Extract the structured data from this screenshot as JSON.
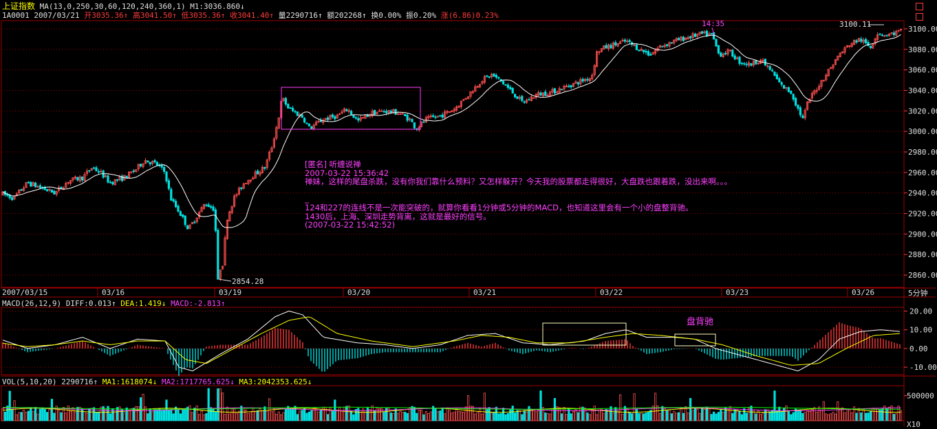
{
  "header": {
    "title": "上证指数",
    "ma_params": "MA(13,0,250,30,60,120,240,360,1)",
    "m1": "M1:3036.860↓",
    "code": "1A0001",
    "date": "2007/03/21",
    "open": "开3035.36↑",
    "high": "高3041.50↑",
    "low": "低3035.36↑",
    "close": "收3041.40↑",
    "volume": "量2290716↑",
    "amount": "额202268↑",
    "turnover": "换0.00%",
    "amplitude": "振0.20%",
    "change": "涨(6.86)0.23%"
  },
  "macd_header": {
    "name": "MACD(26,12,9)",
    "diff": "DIFF:0.013↑",
    "dea": "DEA:1.419↓",
    "macd": "MACD:-2.813↑"
  },
  "vol_header": {
    "name": "VOL(5,10,20)",
    "vol": "2290716↑",
    "ma1": "MA1:1618074↓",
    "ma2": "MA2:1717765.625↓",
    "ma3": "MA3:2042353.625↓"
  },
  "annotations": {
    "low_label": "2854.28",
    "peak_label": "14:35",
    "high_label": "3100.11",
    "macd_label": "盘背驰",
    "period": "5分钟",
    "vol_unit": "X10"
  },
  "note": {
    "l1": "[匿名] 听缠说禅",
    "l2": "2007-03-22 15:36:42",
    "l3": "禅妹，这样的尾盘杀跌，没有你我们靠什么预料？又怎样躲开？今天我的股票都走得很好，大盘跌也跟着跌，没出来啊。。。",
    "l4": "",
    "l5": "_",
    "l6": "124和227的连线不是一次能突破的，就算你看看1分钟或5分钟的MACD，也知道这里会有一个小的盘整背驰。",
    "l7": "1430后，上海、深圳走势背离，这就是最好的信号。",
    "l8": "(2007-03-22 15:42:52)"
  },
  "chart_data": {
    "type": "candlestick",
    "x_tick_labels": [
      "2007/03/15",
      "03/16",
      "03/19",
      "03/20",
      "03/21",
      "03/22",
      "03/23",
      "03/26"
    ],
    "y_ticks": [
      2860,
      2880,
      2900,
      2920,
      2940,
      2960,
      2980,
      3000,
      3020,
      3040,
      3060,
      3080,
      3100
    ],
    "ylim": [
      2848,
      3108
    ],
    "anchors": [
      [
        0,
        2940
      ],
      [
        20,
        2935
      ],
      [
        40,
        2950
      ],
      [
        60,
        2945
      ],
      [
        80,
        2940
      ],
      [
        100,
        2952
      ],
      [
        120,
        2955
      ],
      [
        134,
        2965
      ],
      [
        146,
        2960
      ],
      [
        160,
        2950
      ],
      [
        180,
        2955
      ],
      [
        196,
        2962
      ],
      [
        210,
        2972
      ],
      [
        228,
        2968
      ],
      [
        240,
        2960
      ],
      [
        248,
        2935
      ],
      [
        262,
        2920
      ],
      [
        274,
        2905
      ],
      [
        284,
        2915
      ],
      [
        298,
        2930
      ],
      [
        310,
        2925
      ],
      [
        318,
        2875
      ],
      [
        322,
        2860
      ],
      [
        330,
        2915
      ],
      [
        340,
        2935
      ],
      [
        355,
        2950
      ],
      [
        370,
        2958
      ],
      [
        385,
        2965
      ],
      [
        395,
        2985
      ],
      [
        404,
        3010
      ],
      [
        410,
        3033
      ],
      [
        420,
        3022
      ],
      [
        430,
        3018
      ],
      [
        440,
        3014
      ],
      [
        450,
        3003
      ],
      [
        470,
        3012
      ],
      [
        490,
        3015
      ],
      [
        505,
        3022
      ],
      [
        520,
        3010
      ],
      [
        540,
        3018
      ],
      [
        560,
        3020
      ],
      [
        580,
        3018
      ],
      [
        595,
        3012
      ],
      [
        605,
        3003
      ],
      [
        620,
        3012
      ],
      [
        640,
        3015
      ],
      [
        660,
        3022
      ],
      [
        680,
        3035
      ],
      [
        700,
        3050
      ],
      [
        715,
        3055
      ],
      [
        730,
        3048
      ],
      [
        745,
        3038
      ],
      [
        760,
        3028
      ],
      [
        780,
        3036
      ],
      [
        800,
        3038
      ],
      [
        820,
        3043
      ],
      [
        840,
        3048
      ],
      [
        860,
        3053
      ],
      [
        868,
        3078
      ],
      [
        880,
        3082
      ],
      [
        895,
        3085
      ],
      [
        910,
        3088
      ],
      [
        930,
        3080
      ],
      [
        945,
        3075
      ],
      [
        960,
        3083
      ],
      [
        980,
        3088
      ],
      [
        1000,
        3092
      ],
      [
        1020,
        3095
      ],
      [
        1035,
        3094
      ],
      [
        1045,
        3075
      ],
      [
        1060,
        3078
      ],
      [
        1075,
        3068
      ],
      [
        1090,
        3065
      ],
      [
        1105,
        3070
      ],
      [
        1120,
        3060
      ],
      [
        1135,
        3045
      ],
      [
        1150,
        3038
      ],
      [
        1160,
        3022
      ],
      [
        1167,
        3012
      ],
      [
        1175,
        3030
      ],
      [
        1190,
        3045
      ],
      [
        1205,
        3060
      ],
      [
        1220,
        3075
      ],
      [
        1235,
        3085
      ],
      [
        1250,
        3090
      ],
      [
        1265,
        3082
      ],
      [
        1275,
        3096
      ],
      [
        1290,
        3094
      ],
      [
        1310,
        3098
      ]
    ],
    "macd_ylim": [
      -14,
      22
    ],
    "macd_ticks": [
      -10,
      0,
      10,
      20
    ],
    "diff_anchors": [
      [
        0,
        5
      ],
      [
        40,
        0
      ],
      [
        80,
        2
      ],
      [
        120,
        6
      ],
      [
        160,
        0
      ],
      [
        200,
        5
      ],
      [
        240,
        4
      ],
      [
        260,
        -10
      ],
      [
        280,
        -12
      ],
      [
        320,
        -3
      ],
      [
        360,
        5
      ],
      [
        400,
        17
      ],
      [
        420,
        20
      ],
      [
        440,
        18
      ],
      [
        470,
        6
      ],
      [
        520,
        3
      ],
      [
        560,
        2
      ],
      [
        600,
        0
      ],
      [
        640,
        2
      ],
      [
        680,
        7
      ],
      [
        720,
        8
      ],
      [
        760,
        3
      ],
      [
        800,
        2
      ],
      [
        850,
        4
      ],
      [
        880,
        8
      ],
      [
        910,
        10
      ],
      [
        940,
        6
      ],
      [
        980,
        6
      ],
      [
        1010,
        5
      ],
      [
        1040,
        0
      ],
      [
        1080,
        -4
      ],
      [
        1120,
        -8
      ],
      [
        1160,
        -12
      ],
      [
        1190,
        -6
      ],
      [
        1220,
        5
      ],
      [
        1250,
        9
      ],
      [
        1280,
        10
      ],
      [
        1310,
        9
      ]
    ],
    "dea_anchors": [
      [
        0,
        3
      ],
      [
        40,
        1
      ],
      [
        80,
        2
      ],
      [
        120,
        4
      ],
      [
        160,
        2
      ],
      [
        200,
        4
      ],
      [
        240,
        4
      ],
      [
        270,
        -6
      ],
      [
        300,
        -8
      ],
      [
        340,
        0
      ],
      [
        380,
        8
      ],
      [
        420,
        15
      ],
      [
        450,
        17
      ],
      [
        490,
        8
      ],
      [
        540,
        4
      ],
      [
        600,
        1
      ],
      [
        660,
        4
      ],
      [
        700,
        7
      ],
      [
        740,
        6
      ],
      [
        780,
        3
      ],
      [
        830,
        3
      ],
      [
        880,
        6
      ],
      [
        920,
        8
      ],
      [
        960,
        7
      ],
      [
        1010,
        5
      ],
      [
        1050,
        2
      ],
      [
        1100,
        -4
      ],
      [
        1150,
        -9
      ],
      [
        1190,
        -8
      ],
      [
        1230,
        0
      ],
      [
        1270,
        7
      ],
      [
        1310,
        8
      ]
    ],
    "vol_ylim": [
      0,
      700000
    ],
    "vol_ticks": [
      500000
    ]
  }
}
